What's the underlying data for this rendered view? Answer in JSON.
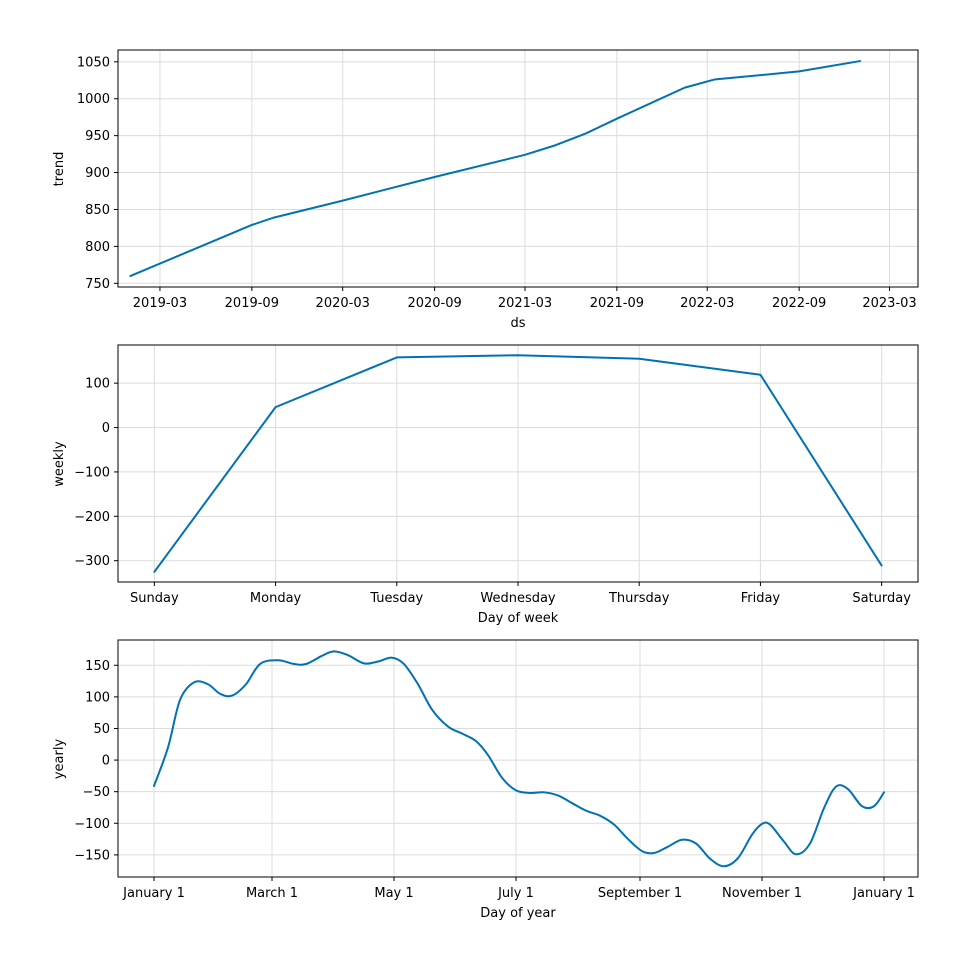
{
  "colors": {
    "line": "#0072b2",
    "grid": "#dcdcdc",
    "axes": "#000000",
    "background": "#ffffff"
  },
  "chart_data": [
    {
      "id": "trend",
      "type": "line",
      "xlabel": "ds",
      "ylabel": "trend",
      "grid": true,
      "x_ticks": [
        {
          "date": "2019-03-01",
          "label": "2019-03"
        },
        {
          "date": "2019-09-01",
          "label": "2019-09"
        },
        {
          "date": "2020-03-01",
          "label": "2020-03"
        },
        {
          "date": "2020-09-01",
          "label": "2020-09"
        },
        {
          "date": "2021-03-01",
          "label": "2021-03"
        },
        {
          "date": "2021-09-01",
          "label": "2021-09"
        },
        {
          "date": "2022-03-01",
          "label": "2022-03"
        },
        {
          "date": "2022-09-01",
          "label": "2022-09"
        },
        {
          "date": "2023-03-01",
          "label": "2023-03"
        }
      ],
      "y_ticks": [
        750,
        800,
        850,
        900,
        950,
        1000,
        1050
      ],
      "xlim": [
        "2018-12-07",
        "2023-04-27"
      ],
      "ylim": [
        745,
        1066
      ],
      "points": [
        {
          "x": "2019-01-01",
          "y": 760
        },
        {
          "x": "2019-09-01",
          "y": 829
        },
        {
          "x": "2019-10-15",
          "y": 839
        },
        {
          "x": "2020-03-01",
          "y": 862
        },
        {
          "x": "2020-09-01",
          "y": 894
        },
        {
          "x": "2021-03-01",
          "y": 924
        },
        {
          "x": "2021-05-01",
          "y": 937
        },
        {
          "x": "2021-07-01",
          "y": 953
        },
        {
          "x": "2021-09-01",
          "y": 973
        },
        {
          "x": "2022-01-15",
          "y": 1015
        },
        {
          "x": "2022-03-15",
          "y": 1026
        },
        {
          "x": "2022-09-01",
          "y": 1037
        },
        {
          "x": "2023-01-01",
          "y": 1051
        }
      ]
    },
    {
      "id": "weekly",
      "type": "line",
      "xlabel": "Day of week",
      "ylabel": "weekly",
      "grid": true,
      "categories": [
        "Sunday",
        "Monday",
        "Tuesday",
        "Wednesday",
        "Thursday",
        "Friday",
        "Saturday"
      ],
      "x_ticks": [
        {
          "x": 0,
          "label": "Sunday"
        },
        {
          "x": 1,
          "label": "Monday"
        },
        {
          "x": 2,
          "label": "Tuesday"
        },
        {
          "x": 3,
          "label": "Wednesday"
        },
        {
          "x": 4,
          "label": "Thursday"
        },
        {
          "x": 5,
          "label": "Friday"
        },
        {
          "x": 6,
          "label": "Saturday"
        }
      ],
      "y_ticks": [
        -300,
        -200,
        -100,
        0,
        100
      ],
      "xlim": [
        -0.3,
        6.3
      ],
      "ylim": [
        -348,
        186
      ],
      "values": [
        -325,
        46,
        158,
        163,
        155,
        119,
        -311
      ]
    },
    {
      "id": "yearly",
      "type": "line",
      "xlabel": "Day of year",
      "ylabel": "yearly",
      "grid": true,
      "x_ticks": [
        {
          "date": "2017-01-01",
          "label": "January 1"
        },
        {
          "date": "2017-03-01",
          "label": "March 1"
        },
        {
          "date": "2017-05-01",
          "label": "May 1"
        },
        {
          "date": "2017-07-01",
          "label": "July 1"
        },
        {
          "date": "2017-09-01",
          "label": "September 1"
        },
        {
          "date": "2017-11-01",
          "label": "November 1"
        },
        {
          "date": "2018-01-01",
          "label": "January 1"
        }
      ],
      "y_ticks": [
        -150,
        -100,
        -50,
        0,
        50,
        100,
        150
      ],
      "xlim": [
        "2016-12-14",
        "2018-01-18"
      ],
      "ylim": [
        -185,
        190
      ],
      "points": [
        {
          "x": "2017-01-01",
          "y": -41
        },
        {
          "x": "2017-01-08",
          "y": 20
        },
        {
          "x": "2017-01-14",
          "y": 95
        },
        {
          "x": "2017-01-21",
          "y": 123
        },
        {
          "x": "2017-01-28",
          "y": 120
        },
        {
          "x": "2017-02-03",
          "y": 105
        },
        {
          "x": "2017-02-09",
          "y": 102
        },
        {
          "x": "2017-02-16",
          "y": 120
        },
        {
          "x": "2017-02-23",
          "y": 152
        },
        {
          "x": "2017-03-04",
          "y": 158
        },
        {
          "x": "2017-03-12",
          "y": 152
        },
        {
          "x": "2017-03-18",
          "y": 152
        },
        {
          "x": "2017-03-26",
          "y": 165
        },
        {
          "x": "2017-04-01",
          "y": 172
        },
        {
          "x": "2017-04-08",
          "y": 166
        },
        {
          "x": "2017-04-16",
          "y": 153
        },
        {
          "x": "2017-04-23",
          "y": 156
        },
        {
          "x": "2017-04-30",
          "y": 162
        },
        {
          "x": "2017-05-06",
          "y": 152
        },
        {
          "x": "2017-05-13",
          "y": 120
        },
        {
          "x": "2017-05-20",
          "y": 80
        },
        {
          "x": "2017-05-28",
          "y": 53
        },
        {
          "x": "2017-06-04",
          "y": 42
        },
        {
          "x": "2017-06-11",
          "y": 30
        },
        {
          "x": "2017-06-17",
          "y": 8
        },
        {
          "x": "2017-06-24",
          "y": -28
        },
        {
          "x": "2017-07-01",
          "y": -48
        },
        {
          "x": "2017-07-08",
          "y": -52
        },
        {
          "x": "2017-07-15",
          "y": -51
        },
        {
          "x": "2017-07-22",
          "y": -56
        },
        {
          "x": "2017-07-29",
          "y": -68
        },
        {
          "x": "2017-08-05",
          "y": -80
        },
        {
          "x": "2017-08-12",
          "y": -88
        },
        {
          "x": "2017-08-19",
          "y": -102
        },
        {
          "x": "2017-08-26",
          "y": -125
        },
        {
          "x": "2017-09-02",
          "y": -144
        },
        {
          "x": "2017-09-08",
          "y": -147
        },
        {
          "x": "2017-09-15",
          "y": -137
        },
        {
          "x": "2017-09-22",
          "y": -126
        },
        {
          "x": "2017-09-29",
          "y": -132
        },
        {
          "x": "2017-10-06",
          "y": -156
        },
        {
          "x": "2017-10-13",
          "y": -168
        },
        {
          "x": "2017-10-20",
          "y": -155
        },
        {
          "x": "2017-10-27",
          "y": -118
        },
        {
          "x": "2017-11-01",
          "y": -101
        },
        {
          "x": "2017-11-05",
          "y": -102
        },
        {
          "x": "2017-11-12",
          "y": -129
        },
        {
          "x": "2017-11-18",
          "y": -149
        },
        {
          "x": "2017-11-25",
          "y": -132
        },
        {
          "x": "2017-12-02",
          "y": -76
        },
        {
          "x": "2017-12-08",
          "y": -42
        },
        {
          "x": "2017-12-14",
          "y": -46
        },
        {
          "x": "2017-12-21",
          "y": -73
        },
        {
          "x": "2017-12-27",
          "y": -73
        },
        {
          "x": "2018-01-01",
          "y": -51
        }
      ]
    }
  ]
}
